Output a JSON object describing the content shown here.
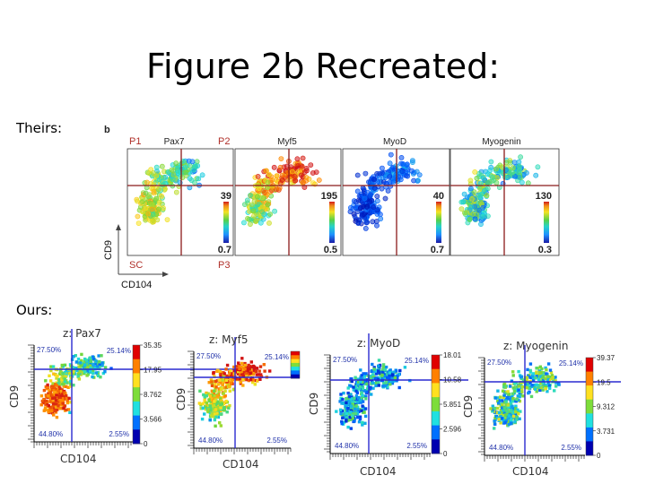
{
  "title": "Figure 2b Recreated:",
  "theirs_label": "Theirs:",
  "ours_label": "Ours:",
  "theirs_figure": {
    "panel_letter": "b",
    "quadrant_labels": {
      "p1": "P1",
      "p2": "P2",
      "sc": "SC",
      "p3": "P3"
    },
    "y_axis_label": "CD9",
    "x_axis_label": "CD104",
    "panels": [
      {
        "title": "Pax7",
        "cb_max": "39",
        "cb_min": "0.7"
      },
      {
        "title": "Myf5",
        "cb_max": "195",
        "cb_min": "0.5"
      },
      {
        "title": "MyoD",
        "cb_max": "40",
        "cb_min": "0.7"
      },
      {
        "title": "Myogenin",
        "cb_max": "130",
        "cb_min": "0.3"
      }
    ]
  },
  "ours_figure": {
    "x_label": "CD104",
    "y_label": "CD9",
    "panels": [
      {
        "title": "z: Pax7",
        "quadrants": {
          "tl": "27.50%",
          "tr": "25.14%",
          "bl": "44.80%",
          "br": "2.55%"
        },
        "colorbar_ticks": [
          "35.35",
          "17.95",
          "8.762",
          "3.566",
          "0"
        ]
      },
      {
        "title": "z: Myf5",
        "quadrants": {
          "tl": "27.50%",
          "tr": "25.14%",
          "bl": "44.80%",
          "br": "2.55%"
        },
        "colorbar_ticks": []
      },
      {
        "title": "z: MyoD",
        "quadrants": {
          "tl": "27.50%",
          "tr": "25.14%",
          "bl": "44.80%",
          "br": "2.55%"
        },
        "colorbar_ticks": [
          "18.01",
          "10.58",
          "5.851",
          "2.596",
          "0"
        ]
      },
      {
        "title": "z: Myogenin",
        "quadrants": {
          "tl": "27.50%",
          "tr": "25.14%",
          "bl": "44.80%",
          "br": "2.55%"
        },
        "colorbar_ticks": [
          "39.37",
          "19.5",
          "9.312",
          "3.731",
          "0"
        ]
      }
    ]
  },
  "colors": {
    "gate_red": "#8b1a1a",
    "gate_blue": "#2a2ad0",
    "pct_blue": "#2233aa"
  }
}
